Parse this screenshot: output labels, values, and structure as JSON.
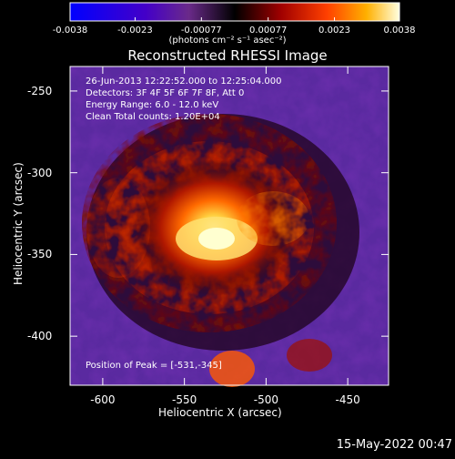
{
  "title": "Reconstructed RHESSI Image",
  "colorbar": {
    "ticks": [
      "-0.0038",
      "-0.0023",
      "-0.00077",
      "0.00077",
      "0.0023",
      "0.0038"
    ],
    "unit_label": "(photons cm⁻² s⁻¹ asec⁻²)",
    "min": -0.0038,
    "max": 0.0038
  },
  "info_lines": [
    "26-Jun-2013 12:22:52.000 to 12:25:04.000",
    "Detectors: 3F 4F 5F 6F 7F 8F, Att 0",
    "Energy Range: 6.0 - 12.0 keV",
    "Clean     Total counts: 1.20E+04"
  ],
  "peak_label": "Position of Peak = [-531,-345]",
  "axes": {
    "x_label": "Heliocentric X (arcsec)",
    "y_label": "Heliocentric Y (arcsec)",
    "x_ticks": [
      "-600",
      "-550",
      "-500",
      "-450"
    ],
    "y_ticks": [
      "-250",
      "-300",
      "-350",
      "-400"
    ],
    "x_range": [
      -620,
      -425
    ],
    "y_range": [
      -430,
      -235
    ]
  },
  "footer": "15-May-2022 00:47"
}
